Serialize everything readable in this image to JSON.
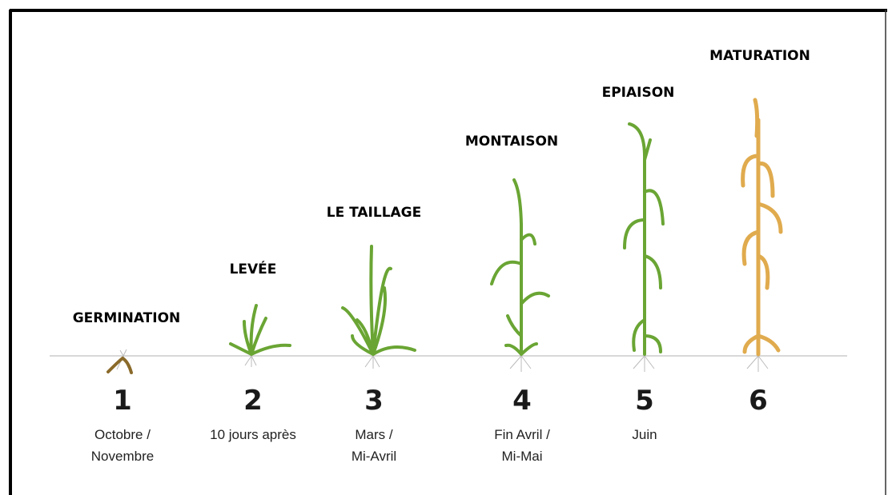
{
  "stages": [
    {
      "title": "GERMINATION",
      "number": "1",
      "period": [
        "Octobre /",
        "Novembre"
      ]
    },
    {
      "title": "LEVÉE",
      "number": "2",
      "period": [
        "10 jours après"
      ]
    },
    {
      "title": "LE TAILLAGE",
      "number": "3",
      "period": [
        "Mars /",
        "Mi-Avril"
      ]
    },
    {
      "title": "MONTAISON",
      "number": "4",
      "period": [
        "Fin Avril /",
        "Mi-Mai"
      ]
    },
    {
      "title": "EPIAISON",
      "number": "5",
      "period": [
        "Juin"
      ]
    },
    {
      "title": "MATURATION",
      "number": "6",
      "period": []
    }
  ]
}
